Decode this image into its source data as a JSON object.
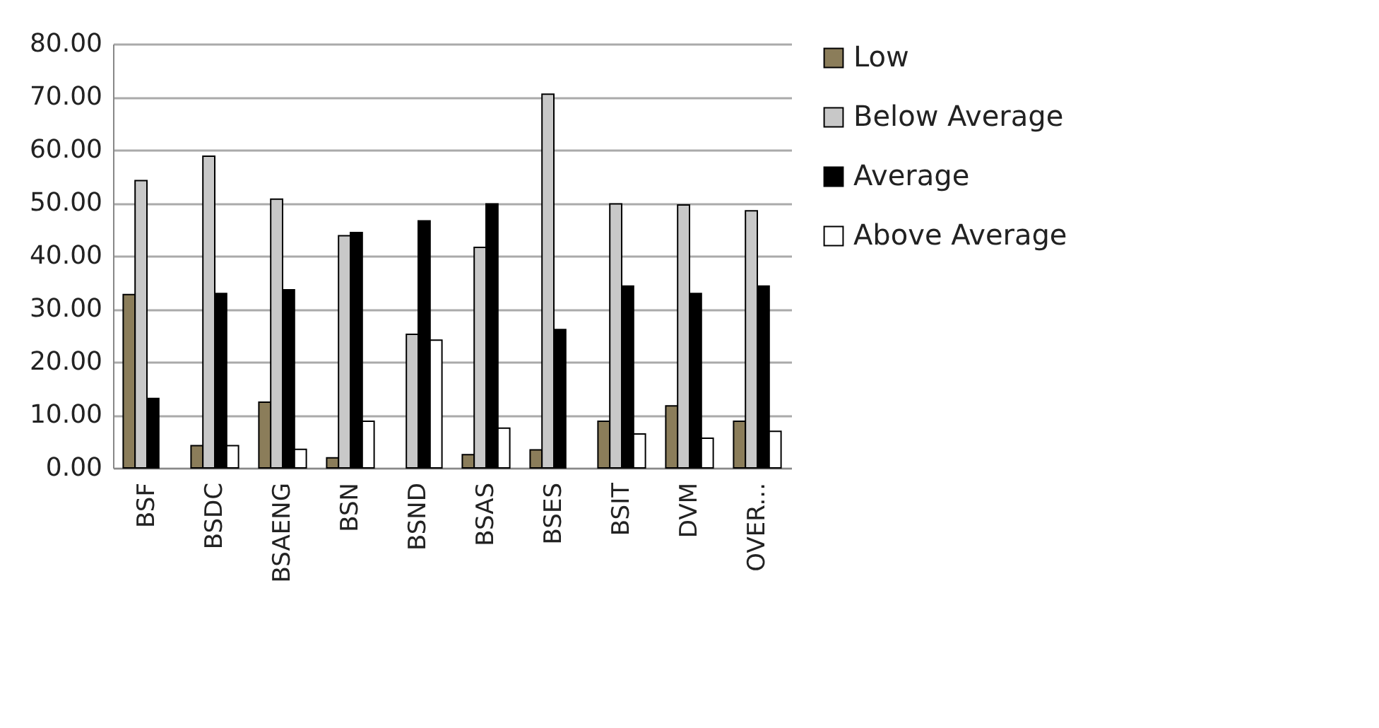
{
  "chart_data": {
    "type": "bar",
    "categories": [
      "BSF",
      "BSDC",
      "BSAENG",
      "BSN",
      "BSND",
      "BSAS",
      "BSES",
      "BSIT",
      "DVM",
      "OVER..."
    ],
    "series": [
      {
        "name": "Low",
        "color": "#8b7d5a",
        "values": [
          32.7,
          4.2,
          12.4,
          1.9,
          null,
          2.5,
          3.4,
          8.8,
          11.7,
          8.8
        ]
      },
      {
        "name": "Below Average",
        "color": "#c8c8c8",
        "values": [
          54.2,
          58.8,
          50.7,
          43.8,
          25.2,
          41.6,
          70.5,
          49.8,
          49.6,
          48.5
        ]
      },
      {
        "name": "Average",
        "color": "#000000",
        "values": [
          13.1,
          32.9,
          33.6,
          44.4,
          46.6,
          49.8,
          26.1,
          34.3,
          32.9,
          34.3
        ]
      },
      {
        "name": "Above Average",
        "color": "#ffffff",
        "values": [
          null,
          4.2,
          3.5,
          8.8,
          24.1,
          7.5,
          null,
          6.4,
          5.6,
          6.9
        ]
      }
    ],
    "ylim": [
      0,
      80
    ],
    "yticks": [
      {
        "value": 0,
        "label": "0.00"
      },
      {
        "value": 10,
        "label": "10.00"
      },
      {
        "value": 20,
        "label": "20.00"
      },
      {
        "value": 30,
        "label": "30.00"
      },
      {
        "value": 40,
        "label": "40.00"
      },
      {
        "value": 50,
        "label": "50.00"
      },
      {
        "value": 60,
        "label": "60.00"
      },
      {
        "value": 70,
        "label": "70.00"
      },
      {
        "value": 80,
        "label": "80.00"
      }
    ],
    "grid": "y",
    "legend": "right"
  }
}
